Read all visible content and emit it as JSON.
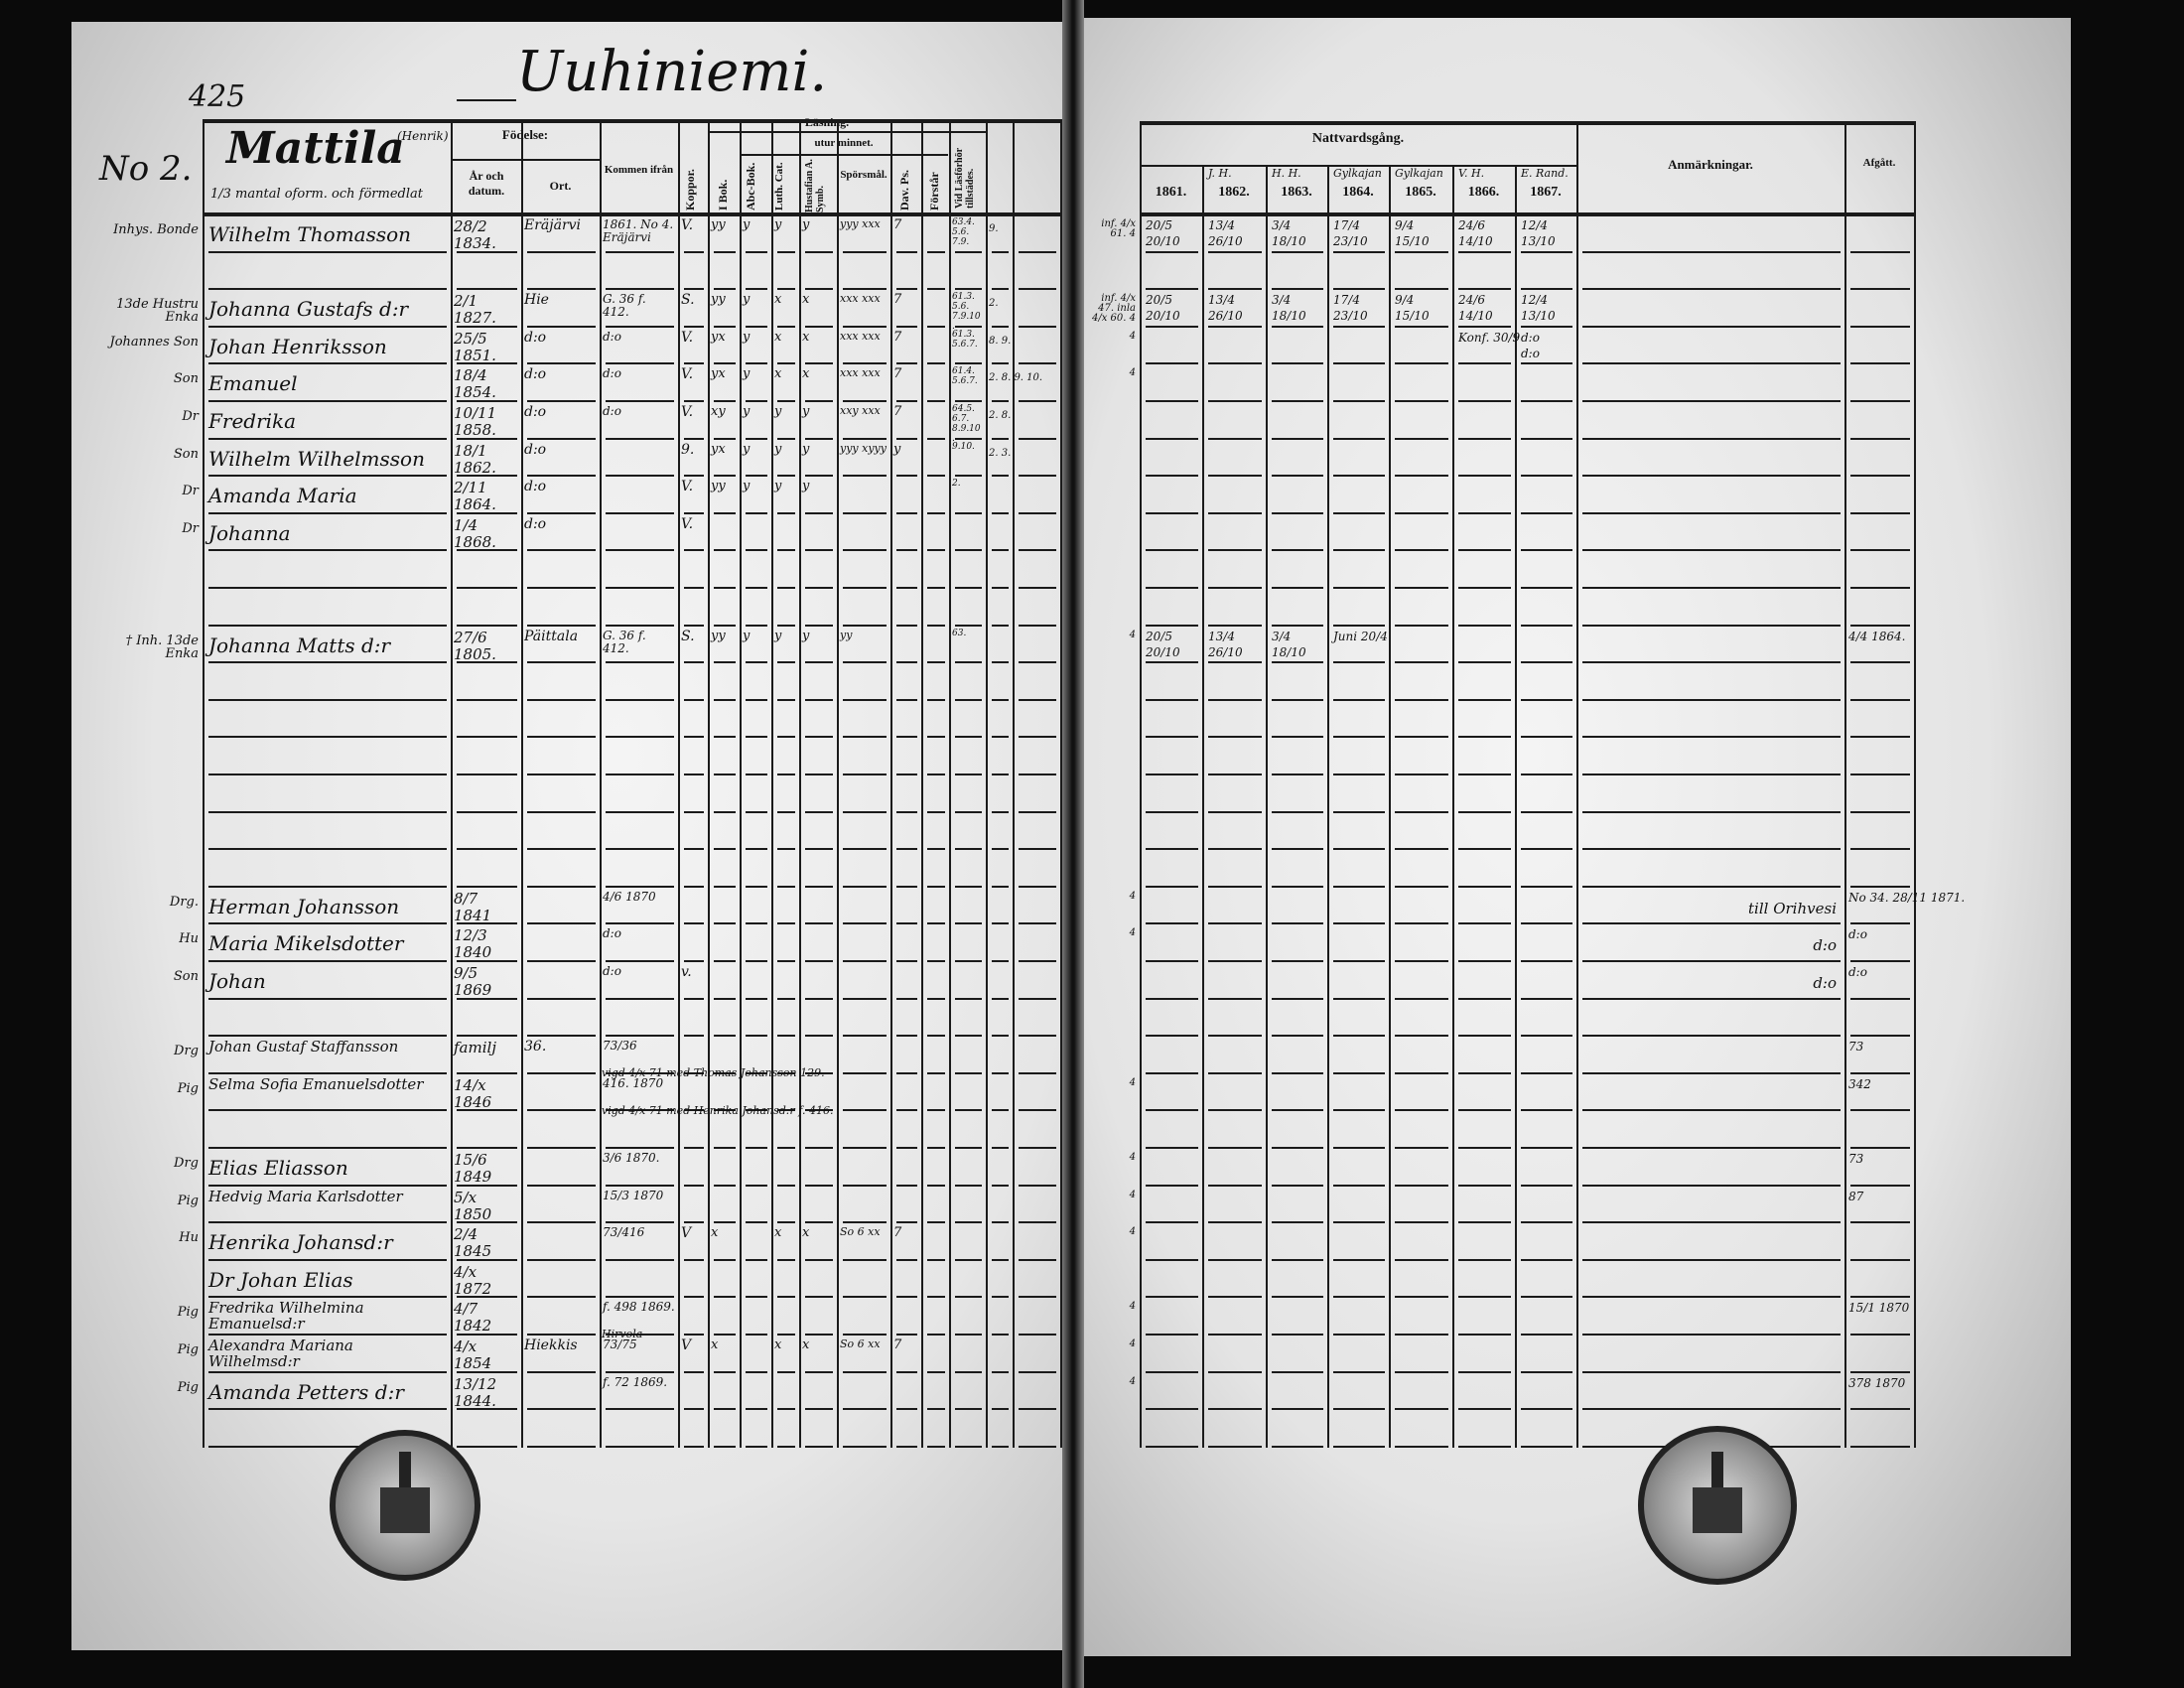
{
  "page_number": "425",
  "village": "Uuhiniemi.",
  "farm_number": "No 2.",
  "farm": {
    "name": "Mattila",
    "subname": "(Henrik)",
    "description": "1/3 mantal oform. och förmedlat"
  },
  "left_headers": {
    "fodelse": "Födelse:",
    "ar": "År och datum.",
    "ort": "Ort.",
    "kommen": "Kommen ifrån",
    "koppor": "Koppor.",
    "lasning": "Läsning.",
    "utur_minnet": "utur minnet.",
    "bok": "I Bok.",
    "abc": "Abc-Bok.",
    "cat": "Luth. Cat.",
    "symb": "Hustafian A. Symb.",
    "spors": "Spörsmål.",
    "ps": "Dav. Ps.",
    "forstar": "Förstår",
    "lasforhor": "Vid Läsförhör tillstädes."
  },
  "right_headers": {
    "nattvard": "Nattvardsgång.",
    "years": [
      {
        "year": "1861.",
        "note": ""
      },
      {
        "year": "1862.",
        "note": "J. H."
      },
      {
        "year": "1863.",
        "note": "H. H."
      },
      {
        "year": "1864.",
        "note": "Gylkajan"
      },
      {
        "year": "1865.",
        "note": "Gylkajan"
      },
      {
        "year": "1866.",
        "note": "V. H."
      },
      {
        "year": "1867.",
        "note": "E. Rand."
      }
    ],
    "anmarkningar": "Anmärkningar.",
    "afgatt": "Afgått."
  },
  "rows": [
    {
      "slot": 0,
      "status": "Inhys. Bonde",
      "name": "Wilhelm Thomasson",
      "birth": "28/2 1834.",
      "place": "Eräjärvi",
      "from": "1861. No 4. Eräjärvi",
      "koppor": "V.",
      "bok": "yy",
      "abc": "y",
      "cat": "y",
      "symb": "y",
      "spors": "yyy xxx",
      "ps": "7",
      "forstar": "",
      "lasforhor": "63.4. 5.6. 7.9.",
      "extra": "9.",
      "margin": "inf. 4/x 61. 4",
      "dates": [
        "20/5",
        "20/10",
        "13/4",
        "26/10",
        "3/4",
        "18/10",
        "17/4",
        "23/10",
        "9/4",
        "15/10",
        "24/6",
        "14/10",
        "12/4",
        "13/10"
      ],
      "remark": "",
      "afgatt": ""
    },
    {
      "slot": 2,
      "status": "13de Hustru Enka",
      "name": "Johanna Gustafs d:r",
      "birth": "2/1 1827.",
      "place": "Hie",
      "from": "G. 36 f. 412.",
      "koppor": "S.",
      "bok": "yy",
      "abc": "y",
      "cat": "x",
      "symb": "x",
      "spors": "xxx xxx",
      "ps": "7",
      "forstar": "",
      "lasforhor": "61.3. 5.6. 7.9.10.",
      "extra": "2.",
      "margin": "inf. 4/x 47. inla 4/x 60. 4",
      "dates": [
        "20/5",
        "20/10",
        "13/4",
        "26/10",
        "3/4",
        "18/10",
        "17/4",
        "23/10",
        "9/4",
        "15/10",
        "24/6",
        "14/10",
        "12/4",
        "13/10"
      ],
      "remark": "",
      "afgatt": ""
    },
    {
      "slot": 3,
      "status": "Johannes Son",
      "name": "Johan Henriksson",
      "birth": "25/5 1851.",
      "place": "d:o",
      "from": "d:o",
      "koppor": "V.",
      "bok": "yx",
      "abc": "y",
      "cat": "x",
      "symb": "x",
      "spors": "xxx xxx",
      "ps": "7",
      "forstar": "",
      "lasforhor": "61.3. 5.6.7.",
      "extra": "8. 9.",
      "margin": "4",
      "dates": [
        "",
        "",
        "",
        "",
        "",
        "",
        "",
        "",
        "",
        "",
        "Konf. 30/9",
        "",
        "d:o",
        "d:o"
      ],
      "remark": "",
      "afgatt": ""
    },
    {
      "slot": 4,
      "status": "Son",
      "name": "Emanuel",
      "birth": "18/4 1854.",
      "place": "d:o",
      "from": "d:o",
      "koppor": "V.",
      "bok": "yx",
      "abc": "y",
      "cat": "x",
      "symb": "x",
      "spors": "xxx xxx",
      "ps": "7",
      "forstar": "",
      "lasforhor": "61.4. 5.6.7.",
      "extra": "2. 8. 9. 10.",
      "margin": "4",
      "dates": [
        "",
        "",
        "",
        "",
        "",
        "",
        "",
        "",
        "",
        "",
        "",
        "",
        "",
        ""
      ],
      "remark": "",
      "afgatt": ""
    },
    {
      "slot": 5,
      "status": "Dr",
      "name": "Fredrika",
      "birth": "10/11 1858.",
      "place": "d:o",
      "from": "d:o",
      "koppor": "V.",
      "bok": "xy",
      "abc": "y",
      "cat": "y",
      "symb": "y",
      "spors": "xxy xxx",
      "ps": "7",
      "forstar": "",
      "lasforhor": "64.5. 6.7. 8.9.10.",
      "extra": "2. 8.",
      "margin": "",
      "dates": [
        "",
        "",
        "",
        "",
        "",
        "",
        "",
        "",
        "",
        "",
        "",
        "",
        "",
        ""
      ],
      "remark": "",
      "afgatt": ""
    },
    {
      "slot": 6,
      "status": "Son",
      "name": "Wilhelm Wilhelmsson",
      "birth": "18/1 1862.",
      "place": "d:o",
      "from": "",
      "koppor": "9.",
      "bok": "yx",
      "abc": "y",
      "cat": "y",
      "symb": "y",
      "spors": "yyy xyyy",
      "ps": "y",
      "forstar": "",
      "lasforhor": "9.10.",
      "extra": "2. 3.",
      "margin": "",
      "dates": [
        "",
        "",
        "",
        "",
        "",
        "",
        "",
        "",
        "",
        "",
        "",
        "",
        "",
        ""
      ],
      "remark": "",
      "afgatt": ""
    },
    {
      "slot": 7,
      "status": "Dr",
      "name": "Amanda Maria",
      "birth": "2/11 1864.",
      "place": "d:o",
      "from": "",
      "koppor": "V.",
      "bok": "yy",
      "abc": "y",
      "cat": "y",
      "symb": "y",
      "spors": "",
      "ps": "",
      "forstar": "",
      "lasforhor": "2.",
      "extra": "",
      "margin": "",
      "dates": [
        "",
        "",
        "",
        "",
        "",
        "",
        "",
        "",
        "",
        "",
        "",
        "",
        "",
        ""
      ],
      "remark": "",
      "afgatt": ""
    },
    {
      "slot": 8,
      "status": "Dr",
      "name": "Johanna",
      "birth": "1/4 1868.",
      "place": "d:o",
      "from": "",
      "koppor": "V.",
      "bok": "",
      "abc": "",
      "cat": "",
      "symb": "",
      "spors": "",
      "ps": "",
      "forstar": "",
      "lasforhor": "",
      "extra": "",
      "margin": "",
      "dates": [
        "",
        "",
        "",
        "",
        "",
        "",
        "",
        "",
        "",
        "",
        "",
        "",
        "",
        ""
      ],
      "remark": "",
      "afgatt": ""
    },
    {
      "slot": 11,
      "status": "† Inh. 13de Enka",
      "name": "Johanna Matts d:r",
      "birth": "27/6 1805.",
      "place": "Päittala",
      "from": "G. 36 f. 412.",
      "koppor": "S.",
      "bok": "yy",
      "abc": "y",
      "cat": "y",
      "symb": "y",
      "spors": "yy",
      "ps": "",
      "forstar": "",
      "lasforhor": "63.",
      "extra": "",
      "margin": "4",
      "dates": [
        "20/5",
        "20/10",
        "13/4",
        "26/10",
        "3/4",
        "18/10",
        "Juni 20/4",
        "",
        "",
        "",
        "",
        "",
        "",
        ""
      ],
      "remark": "",
      "afgatt": "4/4 1864."
    },
    {
      "slot": 18,
      "status": "Drg.",
      "name": "Herman Johansson",
      "birth": "8/7 1841",
      "place": "",
      "from": "4/6 1870",
      "koppor": "",
      "bok": "",
      "abc": "",
      "cat": "",
      "symb": "",
      "spors": "",
      "ps": "",
      "forstar": "",
      "lasforhor": "",
      "extra": "",
      "margin": "4",
      "dates": [
        "",
        "",
        "",
        "",
        "",
        "",
        "",
        "",
        "",
        "",
        "",
        "",
        "",
        ""
      ],
      "remark": "till Orihvesi",
      "afgatt": "No 34. 28/11 1871."
    },
    {
      "slot": 19,
      "status": "Hu",
      "name": "Maria Mikelsdotter",
      "birth": "12/3 1840",
      "place": "",
      "from": "d:o",
      "koppor": "",
      "bok": "",
      "abc": "",
      "cat": "",
      "symb": "",
      "spors": "",
      "ps": "",
      "forstar": "",
      "lasforhor": "",
      "extra": "",
      "margin": "4",
      "dates": [
        "",
        "",
        "",
        "",
        "",
        "",
        "",
        "",
        "",
        "",
        "",
        "",
        "",
        ""
      ],
      "remark": "d:o",
      "afgatt": "d:o"
    },
    {
      "slot": 20,
      "status": "Son",
      "name": "Johan",
      "birth": "9/5 1869",
      "place": "",
      "from": "d:o",
      "koppor": "v.",
      "bok": "",
      "abc": "",
      "cat": "",
      "symb": "",
      "spors": "",
      "ps": "",
      "forstar": "",
      "lasforhor": "",
      "extra": "",
      "margin": "",
      "dates": [
        "",
        "",
        "",
        "",
        "",
        "",
        "",
        "",
        "",
        "",
        "",
        "",
        "",
        ""
      ],
      "remark": "d:o",
      "afgatt": "d:o"
    },
    {
      "slot": 22,
      "status": "Drg",
      "name": "Johan Gustaf Staffansson",
      "birth": "familj",
      "place": "36.",
      "from": "73/36",
      "koppor": "",
      "bok": "",
      "abc": "",
      "cat": "",
      "symb": "",
      "spors": "",
      "ps": "",
      "forstar": "",
      "lasforhor": "",
      "extra": "",
      "note": "vigd 4/x 71 med Thomas Johansson 129.",
      "margin": "",
      "dates": [
        "",
        "",
        "",
        "",
        "",
        "",
        "",
        "",
        "",
        "",
        "",
        "",
        "",
        ""
      ],
      "remark": "",
      "afgatt": "73"
    },
    {
      "slot": 23,
      "status": "Pig",
      "name": "Selma Sofia Emanuelsdotter",
      "birth": "14/x 1846",
      "place": "",
      "from": "416. 1870",
      "koppor": "",
      "bok": "",
      "abc": "",
      "cat": "",
      "symb": "",
      "spors": "",
      "ps": "",
      "forstar": "",
      "lasforhor": "",
      "extra": "",
      "note": "vigd 4/x 71 med Henrika Johansd:r f. 416.",
      "margin": "4",
      "dates": [
        "",
        "",
        "",
        "",
        "",
        "",
        "",
        "",
        "",
        "",
        "",
        "",
        "",
        ""
      ],
      "remark": "",
      "afgatt": "342"
    },
    {
      "slot": 25,
      "status": "Drg",
      "name": "Elias Eliasson",
      "birth": "15/6 1849",
      "place": "",
      "from": "3/6 1870.",
      "koppor": "",
      "bok": "",
      "abc": "",
      "cat": "",
      "symb": "",
      "spors": "",
      "ps": "",
      "forstar": "",
      "lasforhor": "",
      "extra": "",
      "margin": "4",
      "dates": [
        "",
        "",
        "",
        "",
        "",
        "",
        "",
        "",
        "",
        "",
        "",
        "",
        "",
        ""
      ],
      "remark": "",
      "afgatt": "73"
    },
    {
      "slot": 26,
      "status": "Pig",
      "name": "Hedvig Maria Karlsdotter",
      "birth": "5/x 1850",
      "place": "",
      "from": "15/3 1870",
      "koppor": "",
      "bok": "",
      "abc": "",
      "cat": "",
      "symb": "",
      "spors": "",
      "ps": "",
      "forstar": "",
      "lasforhor": "",
      "extra": "",
      "margin": "4",
      "dates": [
        "",
        "",
        "",
        "",
        "",
        "",
        "",
        "",
        "",
        "",
        "",
        "",
        "",
        ""
      ],
      "remark": "",
      "afgatt": "87"
    },
    {
      "slot": 27,
      "status": "Hu",
      "name": "Henrika Johansd:r",
      "birth": "2/4 1845",
      "place": "",
      "from": "73/416",
      "koppor": "V",
      "bok": "x",
      "abc": "",
      "cat": "x",
      "symb": "x",
      "spors": "So 6 xx",
      "ps": "7",
      "forstar": "",
      "lasforhor": "",
      "extra": "",
      "margin": "4",
      "dates": [
        "",
        "",
        "",
        "",
        "",
        "",
        "",
        "",
        "",
        "",
        "",
        "",
        "",
        ""
      ],
      "remark": "",
      "afgatt": ""
    },
    {
      "slot": 28,
      "status": "",
      "name": "Dr Johan Elias",
      "birth": "4/x 1872",
      "place": "",
      "from": "",
      "koppor": "",
      "bok": "",
      "abc": "",
      "cat": "",
      "symb": "",
      "spors": "",
      "ps": "",
      "forstar": "",
      "lasforhor": "",
      "extra": "",
      "margin": "",
      "dates": [
        "",
        "",
        "",
        "",
        "",
        "",
        "",
        "",
        "",
        "",
        "",
        "",
        "",
        ""
      ],
      "remark": "",
      "afgatt": ""
    },
    {
      "slot": 29,
      "status": "Pig",
      "name": "Fredrika Wilhelmina Emanuelsd:r",
      "birth": "4/7 1842",
      "place": "",
      "from": "f. 498 1869.",
      "koppor": "",
      "bok": "",
      "abc": "",
      "cat": "",
      "symb": "",
      "spors": "",
      "ps": "",
      "forstar": "",
      "lasforhor": "",
      "extra": "",
      "note": "Hirvola",
      "margin": "4",
      "dates": [
        "",
        "",
        "",
        "",
        "",
        "",
        "",
        "",
        "",
        "",
        "",
        "",
        "",
        ""
      ],
      "remark": "",
      "afgatt": "15/1 1870"
    },
    {
      "slot": 30,
      "status": "Pig",
      "name": "Alexandra Mariana Wilhelmsd:r",
      "birth": "4/x 1854",
      "place": "Hiekkis",
      "from": "73/75",
      "koppor": "V",
      "bok": "x",
      "abc": "",
      "cat": "x",
      "symb": "x",
      "spors": "So 6 xx",
      "ps": "7",
      "forstar": "",
      "lasforhor": "",
      "extra": "",
      "margin": "4",
      "dates": [
        "",
        "",
        "",
        "",
        "",
        "",
        "",
        "",
        "",
        "",
        "",
        "",
        "",
        ""
      ],
      "remark": "",
      "afgatt": ""
    },
    {
      "slot": 31,
      "status": "Pig",
      "name": "Amanda Petters d:r",
      "birth": "13/12 1844.",
      "place": "",
      "from": "f. 72 1869.",
      "koppor": "",
      "bok": "",
      "abc": "",
      "cat": "",
      "symb": "",
      "spors": "",
      "ps": "",
      "forstar": "",
      "lasforhor": "",
      "extra": "",
      "margin": "4",
      "dates": [
        "",
        "",
        "",
        "",
        "",
        "",
        "",
        "",
        "",
        "",
        "",
        "",
        "",
        ""
      ],
      "remark": "",
      "afgatt": "378 1870"
    }
  ],
  "stamps": {
    "left": "Diocesan archive seal",
    "right": "Diocesan archive seal"
  }
}
